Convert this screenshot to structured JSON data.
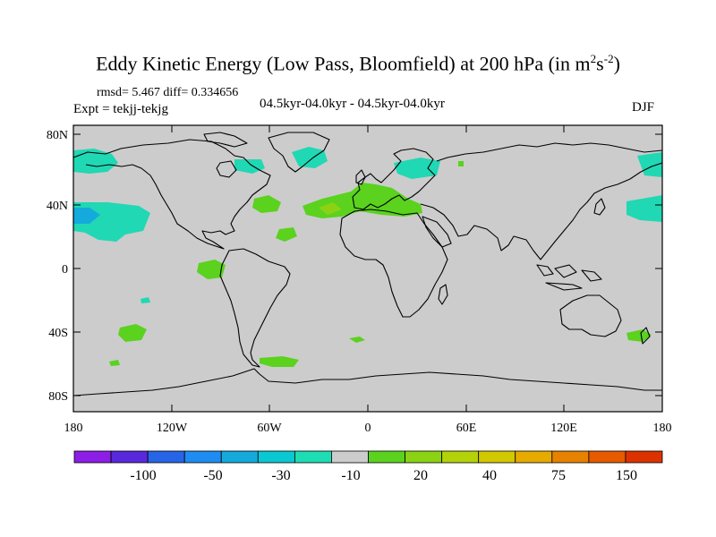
{
  "title": {
    "main": "Eddy Kinetic Energy (Low Pass, Bloomfield) at 200 hPa (in m",
    "sup1": "2",
    "mid": "s",
    "sup2": "-2",
    "close": ")"
  },
  "stats": "rmsd= 5.467 diff= 0.334656",
  "expt": "Expt = tekjj-tekjg",
  "period": "04.5kyr-04.0kyr - 04.5kyr-04.0kyr",
  "season": "DJF",
  "axes": {
    "y_ticks": [
      "80N",
      "40N",
      "0",
      "40S",
      "80S"
    ],
    "x_ticks": [
      "180",
      "120W",
      "60W",
      "0",
      "60E",
      "120E",
      "180"
    ]
  },
  "colorbar": {
    "colors": [
      "#8c1ee6",
      "#5a28dc",
      "#2864e6",
      "#1e8cf0",
      "#14aadc",
      "#0ac8d2",
      "#1edcb4",
      "#cccccc",
      "#5ad21e",
      "#8cd214",
      "#b4d20a",
      "#d2c800",
      "#e6aa00",
      "#e68200",
      "#e65a00",
      "#dc3200"
    ],
    "labels": [
      "-100",
      "-50",
      "-30",
      "-10",
      "20",
      "40",
      "75",
      "150"
    ]
  },
  "chart_data": {
    "type": "map",
    "title": "Eddy Kinetic Energy (Low Pass, Bloomfield) at 200 hPa (in m2s-2)",
    "projection": "cylindrical-equidistant",
    "lon_range": [
      -180,
      180
    ],
    "lat_range": [
      -90,
      90
    ],
    "background_value": 0,
    "regions": [
      {
        "name": "north-pacific-east-negative",
        "lon": -155,
        "lat": 38,
        "sign": "negative"
      },
      {
        "name": "north-pacific-west-negative",
        "lon": 158,
        "lat": 40,
        "sign": "negative"
      },
      {
        "name": "north-atlantic-negative",
        "lon": -20,
        "lat": 68,
        "sign": "negative"
      },
      {
        "name": "alaska-negative",
        "lon": -165,
        "lat": 65,
        "sign": "negative"
      },
      {
        "name": "canada-negative",
        "lon": -75,
        "lat": 62,
        "sign": "negative"
      },
      {
        "name": "scandinavia-negative",
        "lon": 40,
        "lat": 62,
        "sign": "negative"
      },
      {
        "name": "nw-pacific-negative",
        "lon": 173,
        "lat": 62,
        "sign": "negative"
      },
      {
        "name": "south-pacific-negative",
        "lon": -133,
        "lat": -21,
        "sign": "negative"
      },
      {
        "name": "mediterranean-positive",
        "lon": 0,
        "lat": 37,
        "sign": "positive"
      },
      {
        "name": "north-atlantic-west-positive",
        "lon": -55,
        "lat": 40,
        "sign": "positive"
      },
      {
        "name": "atlantic-subtropics-positive",
        "lon": -50,
        "lat": 20,
        "sign": "positive"
      },
      {
        "name": "equatorial-pacific-positive",
        "lon": -95,
        "lat": -2,
        "sign": "positive"
      },
      {
        "name": "south-pacific-positive",
        "lon": -135,
        "lat": -38,
        "sign": "positive"
      },
      {
        "name": "south-atlantic-positive",
        "lon": -52,
        "lat": -60,
        "sign": "positive"
      },
      {
        "name": "southern-ocean-positive",
        "lon": -5,
        "lat": -45,
        "sign": "positive"
      },
      {
        "name": "tasman-positive",
        "lon": 162,
        "lat": -42,
        "sign": "positive"
      }
    ]
  }
}
